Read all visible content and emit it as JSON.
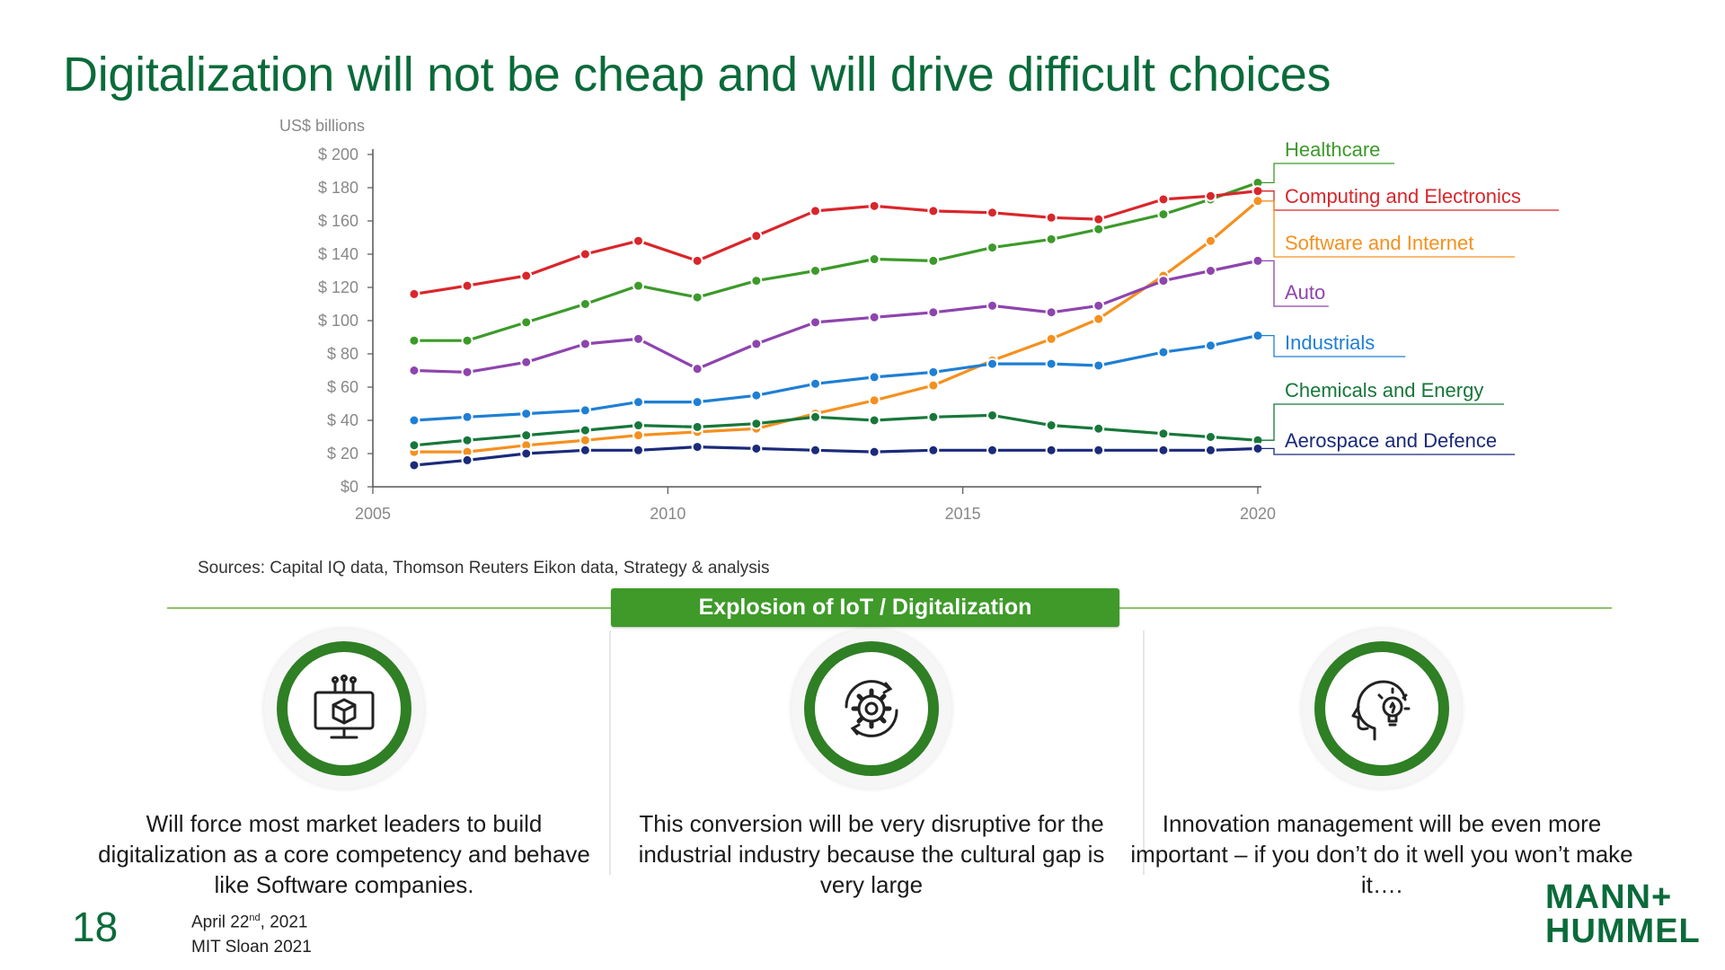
{
  "title": "Digitalization will not be cheap and will drive difficult choices",
  "chart_data": {
    "type": "line",
    "ylabel": "US$ billions",
    "ylim": [
      0,
      200
    ],
    "yticks": [
      0,
      20,
      40,
      60,
      80,
      100,
      120,
      140,
      160,
      180,
      200
    ],
    "ytick_labels": [
      "$0",
      "$ 20",
      "$ 40",
      "$ 60",
      "$ 80",
      "$ 100",
      "$ 120",
      "$ 140",
      "$ 160",
      "$ 180",
      "$ 200"
    ],
    "xlim": [
      2005,
      2020
    ],
    "xticks": [
      2005,
      2010,
      2015,
      2020
    ],
    "xtick_labels": [
      "2005",
      "2010",
      "2015",
      "2020"
    ],
    "x": [
      2005.7,
      2006.6,
      2007.6,
      2008.6,
      2009.5,
      2010.5,
      2011.5,
      2012.5,
      2013.5,
      2014.5,
      2015.5,
      2016.5,
      2017.3,
      2018.4,
      2019.2,
      2020
    ],
    "series": [
      {
        "name": "Healthcare",
        "color": "#3c9a2a",
        "values": [
          88,
          88,
          99,
          110,
          121,
          114,
          124,
          130,
          137,
          136,
          144,
          149,
          155,
          164,
          173,
          183
        ]
      },
      {
        "name": "Computing and Electronics",
        "color": "#d9262b",
        "values": [
          116,
          121,
          127,
          140,
          148,
          136,
          151,
          166,
          169,
          166,
          165,
          162,
          161,
          173,
          175,
          178
        ]
      },
      {
        "name": "Software and Internet",
        "color": "#f5901e",
        "values": [
          21,
          21,
          25,
          28,
          31,
          33,
          35,
          44,
          52,
          61,
          76,
          89,
          101,
          127,
          148,
          172
        ]
      },
      {
        "name": "Auto",
        "color": "#8e44ad",
        "values": [
          70,
          69,
          75,
          86,
          89,
          71,
          86,
          99,
          102,
          105,
          109,
          105,
          109,
          124,
          130,
          136
        ]
      },
      {
        "name": "Industrials",
        "color": "#1f7fd4",
        "values": [
          40,
          42,
          44,
          46,
          51,
          51,
          55,
          62,
          66,
          69,
          74,
          74,
          73,
          81,
          85,
          91
        ]
      },
      {
        "name": "Chemicals and Energy",
        "color": "#17773a",
        "values": [
          25,
          28,
          31,
          34,
          37,
          36,
          38,
          42,
          40,
          42,
          43,
          37,
          35,
          32,
          30,
          28
        ]
      },
      {
        "name": "Aerospace and Defence",
        "color": "#1b2a7a",
        "values": [
          13,
          16,
          20,
          22,
          22,
          24,
          23,
          22,
          21,
          22,
          22,
          22,
          22,
          22,
          22,
          23
        ]
      }
    ]
  },
  "sources": "Sources: Capital IQ data, Thomson Reuters Eikon data, Strategy & analysis",
  "banner": "Explosion of IoT / Digitalization",
  "columns": [
    {
      "icon": "computer-cube-icon",
      "text": "Will force most market leaders to build digitalization as a core competency and behave like Software companies."
    },
    {
      "icon": "gear-cycle-icon",
      "text": "This conversion will be very disruptive for the industrial industry because the cultural gap is very large"
    },
    {
      "icon": "head-lightbulb-icon",
      "text": "Innovation management will be even more important – if you don’t do it well you won’t make it…."
    }
  ],
  "footer": {
    "page_number": "18",
    "date_prefix": "April 22",
    "date_sup": "nd",
    "date_suffix": ", 2021",
    "event": "MIT Sloan 2021"
  },
  "logo": {
    "line1": "MANN+",
    "line2": "HUMMEL"
  },
  "colors": {
    "brand_green": "#0a6b3a",
    "banner_green": "#3f9a2a",
    "ring_green": "#2f7f25"
  }
}
